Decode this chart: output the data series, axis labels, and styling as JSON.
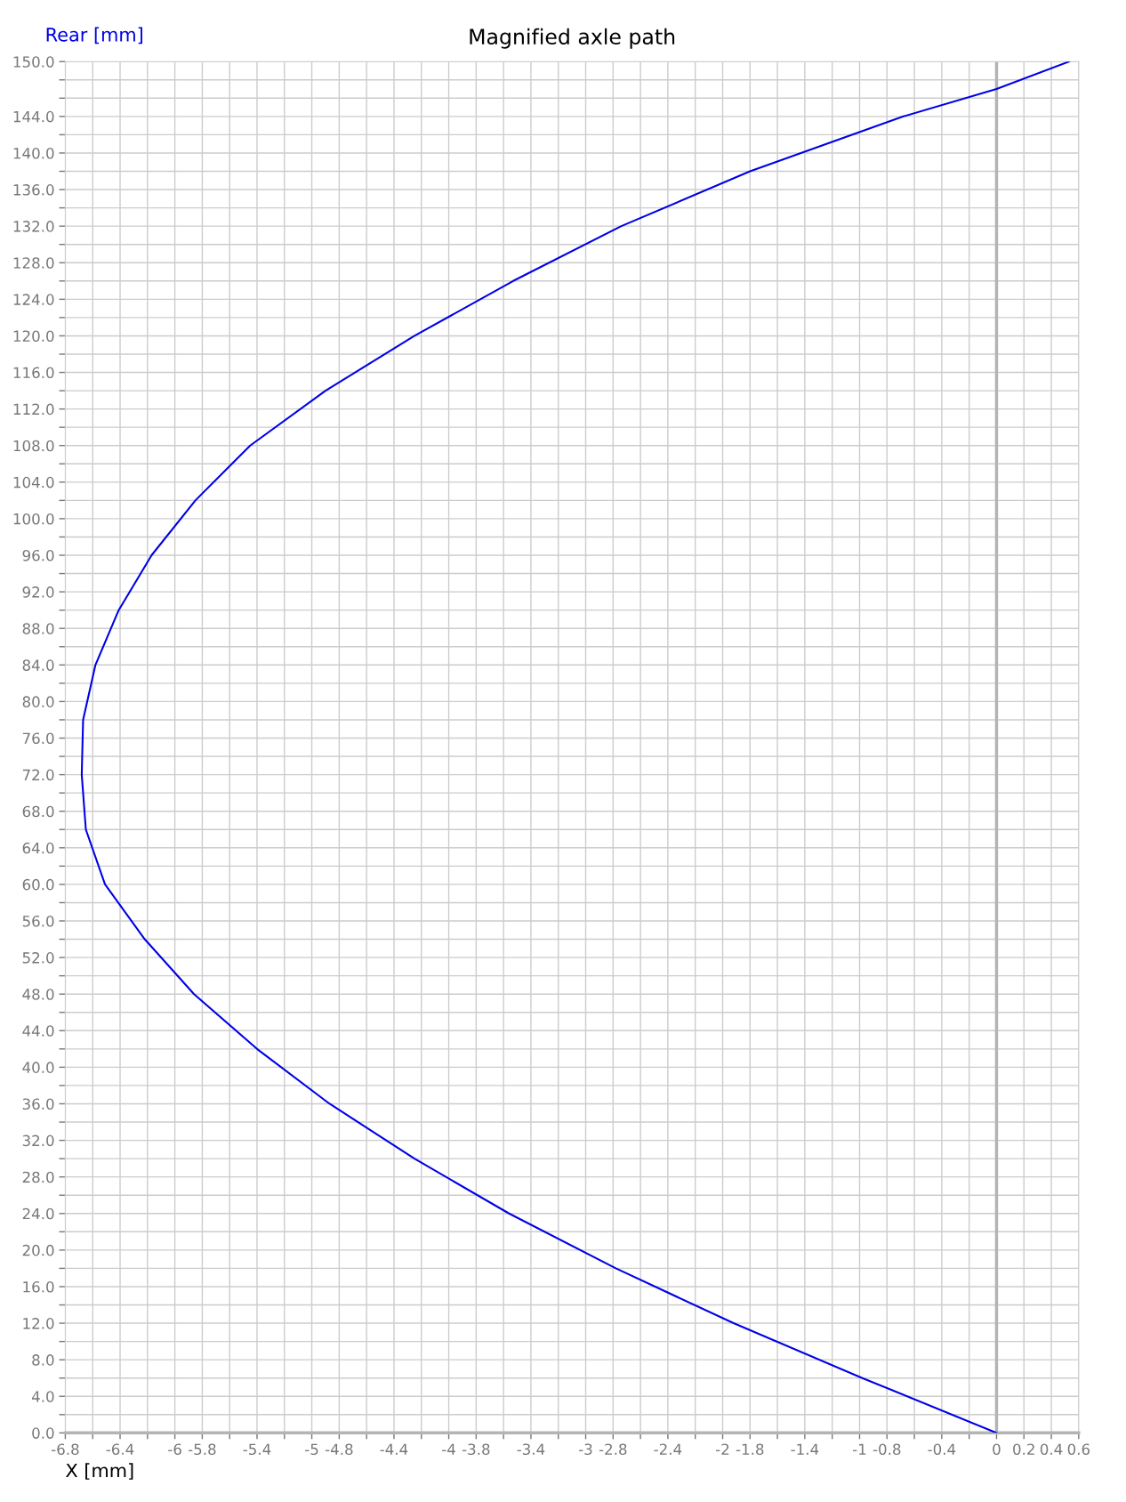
{
  "chart_data": {
    "type": "line",
    "title": "Magnified axle path",
    "xlabel": "X [mm]",
    "ylabel": "Rear [mm]",
    "series": [
      {
        "color": "#0000e6",
        "x": [
          0,
          -0.98,
          -1.92,
          -2.78,
          -3.56,
          -4.25,
          -4.87,
          -5.4,
          -5.86,
          -6.22,
          -6.51,
          -6.65,
          -6.68,
          -6.67,
          -6.58,
          -6.41,
          -6.17,
          -5.85,
          -5.45,
          -4.9,
          -4.25,
          -3.53,
          -2.74,
          -1.8,
          -0.68,
          0,
          0.53
        ],
        "values": [
          0,
          6,
          12,
          18,
          24,
          30,
          36,
          42,
          48,
          54,
          60,
          66,
          72,
          78,
          84,
          90,
          96,
          102,
          108,
          114,
          120,
          126,
          132,
          138,
          144,
          147,
          150
        ]
      }
    ],
    "xlim": [
      -6.8,
      0.6
    ],
    "ylim": [
      0,
      150
    ],
    "xticks": [
      -6.8,
      {
        "value": -6.6,
        "label": null
      },
      -6.4,
      {
        "value": -6.2,
        "label": null
      },
      -6,
      -5.8,
      {
        "value": -5.6,
        "label": null
      },
      -5.4,
      {
        "value": -5.2,
        "label": null
      },
      -5,
      -4.8,
      {
        "value": -4.6,
        "label": null
      },
      -4.4,
      {
        "value": -4.2,
        "label": null
      },
      -4,
      -3.8,
      {
        "value": -3.6,
        "label": null
      },
      -3.4,
      {
        "value": -3.2,
        "label": null
      },
      -3,
      -2.8,
      {
        "value": -2.6,
        "label": null
      },
      -2.4,
      {
        "value": -2.2,
        "label": null
      },
      -2,
      -1.8,
      {
        "value": -1.6,
        "label": null
      },
      -1.4,
      {
        "value": -1.2,
        "label": null
      },
      -1,
      -0.8,
      {
        "value": -0.6,
        "label": null
      },
      -0.4,
      {
        "value": -0.2,
        "label": null
      },
      0,
      0.2,
      0.4,
      0.6
    ],
    "yticks": [
      {
        "value": 0,
        "label": "0.0"
      },
      {
        "value": 2,
        "label": null
      },
      {
        "value": 4,
        "label": "4.0"
      },
      {
        "value": 6,
        "label": null
      },
      {
        "value": 8,
        "label": "8.0"
      },
      {
        "value": 10,
        "label": null
      },
      {
        "value": 12,
        "label": "12.0"
      },
      {
        "value": 14,
        "label": null
      },
      {
        "value": 16,
        "label": "16.0"
      },
      {
        "value": 18,
        "label": null
      },
      {
        "value": 20,
        "label": "20.0"
      },
      {
        "value": 22,
        "label": null
      },
      {
        "value": 24,
        "label": "24.0"
      },
      {
        "value": 26,
        "label": null
      },
      {
        "value": 28,
        "label": "28.0"
      },
      {
        "value": 30,
        "label": null
      },
      {
        "value": 32,
        "label": "32.0"
      },
      {
        "value": 34,
        "label": null
      },
      {
        "value": 36,
        "label": "36.0"
      },
      {
        "value": 38,
        "label": null
      },
      {
        "value": 40,
        "label": "40.0"
      },
      {
        "value": 42,
        "label": null
      },
      {
        "value": 44,
        "label": "44.0"
      },
      {
        "value": 46,
        "label": null
      },
      {
        "value": 48,
        "label": "48.0"
      },
      {
        "value": 50,
        "label": null
      },
      {
        "value": 52,
        "label": "52.0"
      },
      {
        "value": 54,
        "label": null
      },
      {
        "value": 56,
        "label": "56.0"
      },
      {
        "value": 58,
        "label": null
      },
      {
        "value": 60,
        "label": "60.0"
      },
      {
        "value": 62,
        "label": null
      },
      {
        "value": 64,
        "label": "64.0"
      },
      {
        "value": 66,
        "label": null
      },
      {
        "value": 68,
        "label": "68.0"
      },
      {
        "value": 70,
        "label": null
      },
      {
        "value": 72,
        "label": "72.0"
      },
      {
        "value": 74,
        "label": null
      },
      {
        "value": 76,
        "label": "76.0"
      },
      {
        "value": 78,
        "label": null
      },
      {
        "value": 80,
        "label": "80.0"
      },
      {
        "value": 82,
        "label": null
      },
      {
        "value": 84,
        "label": "84.0"
      },
      {
        "value": 86,
        "label": null
      },
      {
        "value": 88,
        "label": "88.0"
      },
      {
        "value": 90,
        "label": null
      },
      {
        "value": 92,
        "label": "92.0"
      },
      {
        "value": 94,
        "label": null
      },
      {
        "value": 96,
        "label": "96.0"
      },
      {
        "value": 98,
        "label": null
      },
      {
        "value": 100,
        "label": "100.0"
      },
      {
        "value": 102,
        "label": null
      },
      {
        "value": 104,
        "label": "104.0"
      },
      {
        "value": 106,
        "label": null
      },
      {
        "value": 108,
        "label": "108.0"
      },
      {
        "value": 110,
        "label": null
      },
      {
        "value": 112,
        "label": "112.0"
      },
      {
        "value": 114,
        "label": null
      },
      {
        "value": 116,
        "label": "116.0"
      },
      {
        "value": 118,
        "label": null
      },
      {
        "value": 120,
        "label": "120.0"
      },
      {
        "value": 122,
        "label": null
      },
      {
        "value": 124,
        "label": "124.0"
      },
      {
        "value": 126,
        "label": null
      },
      {
        "value": 128,
        "label": "128.0"
      },
      {
        "value": 130,
        "label": null
      },
      {
        "value": 132,
        "label": "132.0"
      },
      {
        "value": 134,
        "label": null
      },
      {
        "value": 136,
        "label": "136.0"
      },
      {
        "value": 138,
        "label": null
      },
      {
        "value": 140,
        "label": "140.0"
      },
      {
        "value": 142,
        "label": null
      },
      {
        "value": 144,
        "label": "144.0"
      },
      {
        "value": 146,
        "label": null
      },
      {
        "value": 148,
        "label": null
      },
      {
        "value": 150,
        "label": "150.0"
      }
    ],
    "ref_lines": [
      {
        "axis": "x",
        "value": 0,
        "color": "#b4b4b4"
      }
    ],
    "grid": true,
    "line_style": "solid"
  }
}
